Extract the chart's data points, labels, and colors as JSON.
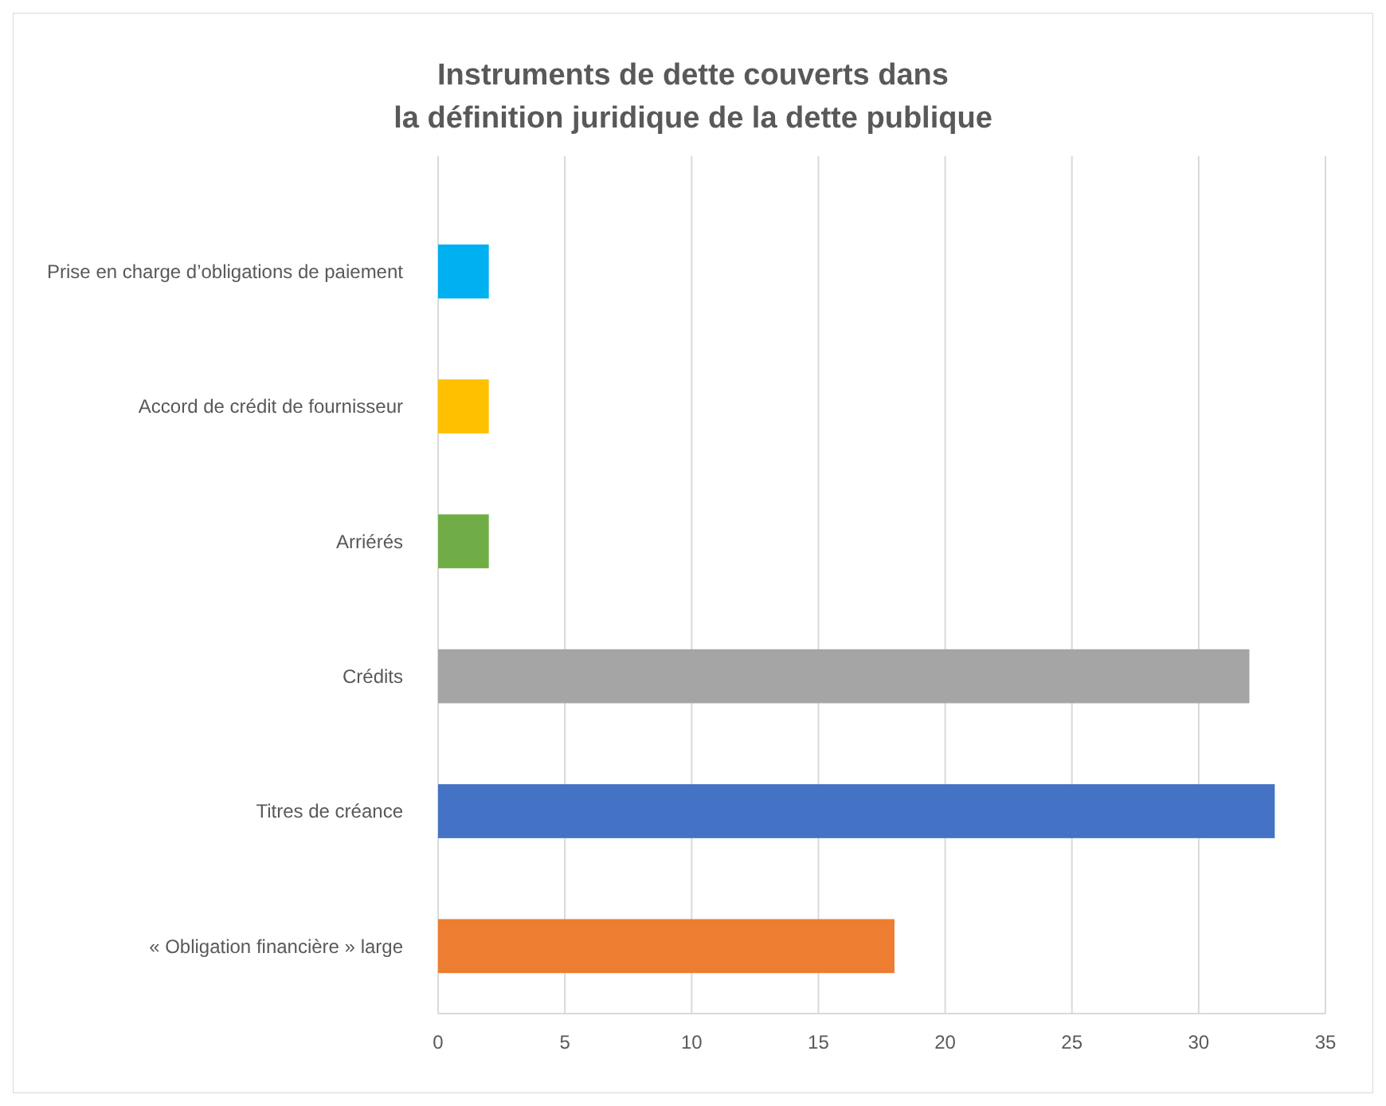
{
  "chart_data": {
    "type": "bar",
    "orientation": "horizontal",
    "title": "Instruments de dette couverts dans\nla définition juridique de la dette publique",
    "categories": [
      "Prise en charge d’obligations de paiement",
      "Accord de crédit de fournisseur",
      "Arriérés",
      "Crédits",
      "Titres de créance",
      "« Obligation financière » large"
    ],
    "values": [
      2,
      2,
      2,
      32,
      33,
      18
    ],
    "colors": [
      "#00b0f0",
      "#ffc000",
      "#70ad47",
      "#a5a5a5",
      "#4472c4",
      "#ed7d31"
    ],
    "xlim": [
      0,
      35
    ],
    "xticks": [
      0,
      5,
      10,
      15,
      20,
      25,
      30,
      35
    ],
    "grid": "x"
  }
}
